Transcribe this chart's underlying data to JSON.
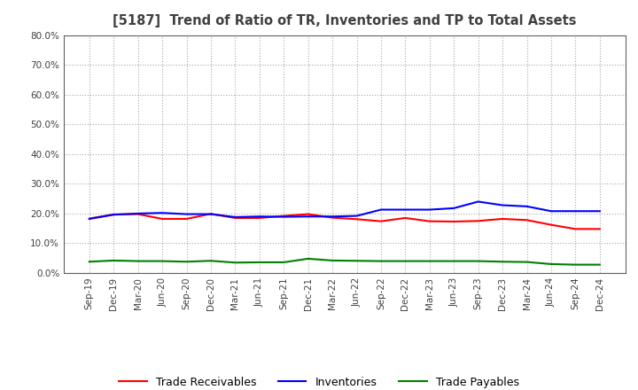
{
  "title": "[5187]  Trend of Ratio of TR, Inventories and TP to Total Assets",
  "x_labels": [
    "Sep-19",
    "Dec-19",
    "Mar-20",
    "Jun-20",
    "Sep-20",
    "Dec-20",
    "Mar-21",
    "Jun-21",
    "Sep-21",
    "Dec-21",
    "Mar-22",
    "Jun-22",
    "Sep-22",
    "Dec-22",
    "Mar-23",
    "Jun-23",
    "Sep-23",
    "Dec-23",
    "Mar-24",
    "Jun-24",
    "Sep-24",
    "Dec-24"
  ],
  "trade_receivables": [
    0.183,
    0.197,
    0.198,
    0.182,
    0.182,
    0.199,
    0.185,
    0.185,
    0.192,
    0.198,
    0.186,
    0.181,
    0.174,
    0.185,
    0.174,
    0.173,
    0.175,
    0.182,
    0.178,
    0.162,
    0.148,
    0.148
  ],
  "inventories": [
    0.182,
    0.196,
    0.2,
    0.202,
    0.198,
    0.198,
    0.188,
    0.19,
    0.189,
    0.19,
    0.19,
    0.192,
    0.213,
    0.213,
    0.213,
    0.218,
    0.24,
    0.228,
    0.224,
    0.208,
    0.208,
    0.208
  ],
  "trade_payables": [
    0.038,
    0.042,
    0.04,
    0.04,
    0.038,
    0.041,
    0.035,
    0.036,
    0.036,
    0.048,
    0.042,
    0.041,
    0.04,
    0.04,
    0.04,
    0.04,
    0.04,
    0.038,
    0.037,
    0.03,
    0.028,
    0.028
  ],
  "ylim": [
    0.0,
    0.8
  ],
  "yticks": [
    0.0,
    0.1,
    0.2,
    0.3,
    0.4,
    0.5,
    0.6,
    0.7,
    0.8
  ],
  "color_tr": "#ff0000",
  "color_inv": "#0000ff",
  "color_tp": "#008000",
  "legend_labels": [
    "Trade Receivables",
    "Inventories",
    "Trade Payables"
  ],
  "bg_color": "#ffffff",
  "grid_color": "#aaaaaa",
  "title_color": "#404040"
}
